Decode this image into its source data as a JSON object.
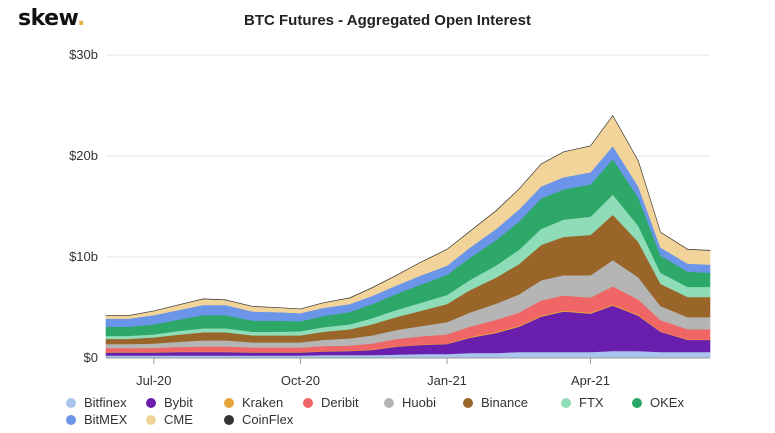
{
  "brand": {
    "name": "skew",
    "dot": "."
  },
  "chart_data": {
    "type": "area",
    "stacked": true,
    "title": "BTC Futures - Aggregated Open Interest",
    "xlabel": "",
    "ylabel": "",
    "ylim": [
      0,
      30
    ],
    "y_unit": "billions USD",
    "yticks": [
      "$0",
      "$10b",
      "$20b",
      "$30b"
    ],
    "ytick_values": [
      0,
      10,
      20,
      30
    ],
    "xticks": [
      "Jul-20",
      "Oct-20",
      "Jan-21",
      "Apr-21"
    ],
    "xtick_dates": [
      "2020-07-01",
      "2020-10-01",
      "2021-01-01",
      "2021-04-01"
    ],
    "xlim": [
      "2020-06-01",
      "2021-06-15"
    ],
    "grid": "horizontal",
    "legend_position": "bottom",
    "x": [
      "2020-06-01",
      "2020-06-15",
      "2020-07-01",
      "2020-07-15",
      "2020-08-01",
      "2020-08-15",
      "2020-09-01",
      "2020-09-15",
      "2020-10-01",
      "2020-10-15",
      "2020-11-01",
      "2020-11-15",
      "2020-12-01",
      "2020-12-15",
      "2021-01-01",
      "2021-01-15",
      "2021-02-01",
      "2021-02-15",
      "2021-03-01",
      "2021-03-15",
      "2021-04-01",
      "2021-04-15",
      "2021-05-01",
      "2021-05-15",
      "2021-06-01",
      "2021-06-15"
    ],
    "series": [
      {
        "name": "Bitfinex",
        "color": "#a9c5ee",
        "values": [
          0.25,
          0.25,
          0.25,
          0.25,
          0.25,
          0.25,
          0.25,
          0.25,
          0.25,
          0.3,
          0.3,
          0.3,
          0.35,
          0.4,
          0.4,
          0.5,
          0.5,
          0.6,
          0.6,
          0.6,
          0.6,
          0.7,
          0.7,
          0.6,
          0.6,
          0.6
        ]
      },
      {
        "name": "Bybit",
        "color": "#6a1eae",
        "values": [
          0.3,
          0.3,
          0.3,
          0.35,
          0.35,
          0.35,
          0.3,
          0.3,
          0.3,
          0.35,
          0.4,
          0.5,
          0.8,
          0.9,
          1.0,
          1.5,
          2.0,
          2.5,
          3.5,
          4.0,
          3.8,
          4.5,
          3.5,
          2.0,
          1.2,
          1.2
        ]
      },
      {
        "name": "Kraken",
        "color": "#e5a53a",
        "values": [
          0.05,
          0.05,
          0.05,
          0.05,
          0.05,
          0.05,
          0.05,
          0.05,
          0.05,
          0.05,
          0.05,
          0.05,
          0.05,
          0.05,
          0.05,
          0.1,
          0.1,
          0.1,
          0.1,
          0.1,
          0.1,
          0.1,
          0.1,
          0.05,
          0.05,
          0.05
        ]
      },
      {
        "name": "Deribit",
        "color": "#f06565",
        "values": [
          0.4,
          0.4,
          0.4,
          0.45,
          0.5,
          0.5,
          0.45,
          0.45,
          0.45,
          0.5,
          0.5,
          0.6,
          0.7,
          0.8,
          0.9,
          1.0,
          1.2,
          1.3,
          1.5,
          1.5,
          1.5,
          1.8,
          1.5,
          1.1,
          1.0,
          1.0
        ]
      },
      {
        "name": "Huobi",
        "color": "#b5b5b5",
        "values": [
          0.4,
          0.4,
          0.45,
          0.5,
          0.6,
          0.6,
          0.5,
          0.5,
          0.5,
          0.6,
          0.7,
          0.8,
          0.9,
          1.0,
          1.2,
          1.4,
          1.6,
          1.8,
          2.0,
          2.0,
          2.2,
          2.6,
          2.2,
          1.4,
          1.2,
          1.2
        ]
      },
      {
        "name": "Binance",
        "color": "#9a6528",
        "values": [
          0.5,
          0.5,
          0.6,
          0.7,
          0.8,
          0.8,
          0.7,
          0.7,
          0.7,
          0.8,
          0.9,
          1.1,
          1.3,
          1.5,
          1.8,
          2.2,
          2.6,
          3.0,
          3.5,
          3.8,
          4.0,
          4.5,
          3.5,
          2.2,
          2.0,
          2.0
        ]
      },
      {
        "name": "FTX",
        "color": "#8fdcb8",
        "values": [
          0.3,
          0.3,
          0.3,
          0.35,
          0.4,
          0.4,
          0.35,
          0.35,
          0.4,
          0.45,
          0.5,
          0.6,
          0.7,
          0.8,
          0.9,
          1.0,
          1.2,
          1.4,
          1.6,
          1.7,
          1.8,
          2.0,
          1.6,
          1.1,
          1.0,
          1.0
        ]
      },
      {
        "name": "OKEx",
        "color": "#2ea869",
        "values": [
          0.9,
          0.9,
          1.0,
          1.1,
          1.3,
          1.3,
          1.1,
          1.1,
          1.0,
          1.1,
          1.2,
          1.4,
          1.6,
          1.8,
          2.0,
          2.2,
          2.5,
          2.8,
          3.0,
          3.0,
          3.2,
          3.5,
          2.8,
          1.7,
          1.5,
          1.4
        ]
      },
      {
        "name": "BitMEX",
        "color": "#6a95e8",
        "values": [
          0.8,
          0.8,
          0.9,
          0.95,
          1.0,
          1.0,
          0.9,
          0.85,
          0.8,
          0.8,
          0.8,
          0.8,
          0.85,
          0.9,
          0.9,
          1.0,
          1.1,
          1.2,
          1.2,
          1.2,
          1.2,
          1.3,
          1.1,
          0.8,
          0.8,
          0.8
        ]
      },
      {
        "name": "CME",
        "color": "#f2d49a",
        "values": [
          0.3,
          0.3,
          0.4,
          0.5,
          0.6,
          0.5,
          0.5,
          0.45,
          0.4,
          0.5,
          0.6,
          0.8,
          1.0,
          1.3,
          1.6,
          1.6,
          1.8,
          2.0,
          2.2,
          2.5,
          2.6,
          3.0,
          2.5,
          1.5,
          1.4,
          1.4
        ]
      },
      {
        "name": "CoinFlex",
        "color": "#333333",
        "values": [
          0.01,
          0.01,
          0.01,
          0.01,
          0.01,
          0.01,
          0.01,
          0.01,
          0.01,
          0.01,
          0.01,
          0.01,
          0.01,
          0.01,
          0.01,
          0.01,
          0.01,
          0.01,
          0.01,
          0.01,
          0.01,
          0.01,
          0.01,
          0.01,
          0.01,
          0.01
        ]
      }
    ]
  },
  "legend_rows": [
    [
      "Bitfinex",
      "Bybit",
      "Kraken",
      "Deribit",
      "Huobi",
      "Binance",
      "FTX",
      "OKEx"
    ],
    [
      "BitMEX",
      "CME",
      "CoinFlex"
    ]
  ]
}
